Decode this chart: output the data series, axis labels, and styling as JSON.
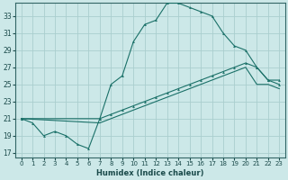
{
  "xlabel": "Humidex (Indice chaleur)",
  "bg_color": "#cce8e8",
  "grid_color": "#b8d8d8",
  "line_color": "#1a7068",
  "xlim": [
    -0.5,
    23.5
  ],
  "ylim": [
    16.5,
    34.5
  ],
  "yticks": [
    17,
    19,
    21,
    23,
    25,
    27,
    29,
    31,
    33
  ],
  "xticks": [
    0,
    1,
    2,
    3,
    4,
    5,
    6,
    7,
    8,
    9,
    10,
    11,
    12,
    13,
    14,
    15,
    16,
    17,
    18,
    19,
    20,
    21,
    22,
    23
  ],
  "main_line": [
    21,
    20.5,
    19,
    19.5,
    19,
    18.0,
    17.5,
    21.0,
    25.0,
    26.0,
    30.0,
    32.0,
    32.5,
    34.5,
    34.5,
    34.0,
    33.5,
    33.0,
    31.0,
    29.5,
    29.0,
    27.0,
    25.5,
    25.5
  ],
  "line2_x": [
    0,
    7,
    8,
    9,
    10,
    11,
    12,
    13,
    14,
    15,
    16,
    17,
    18,
    19,
    20,
    21,
    22,
    23
  ],
  "line2_y": [
    21,
    21,
    21.5,
    22,
    22.5,
    23,
    23.5,
    24,
    24.5,
    25,
    25.5,
    26,
    26.5,
    27,
    27.5,
    27,
    25.5,
    25.0
  ],
  "line3_x": [
    0,
    7,
    8,
    9,
    10,
    11,
    12,
    13,
    14,
    15,
    16,
    17,
    18,
    19,
    20,
    21,
    22,
    23
  ],
  "line3_y": [
    21,
    20.5,
    21.0,
    21.5,
    22.0,
    22.5,
    23.0,
    23.5,
    24.0,
    24.5,
    25.0,
    25.5,
    26.0,
    26.5,
    27.0,
    25.0,
    25.0,
    24.5
  ]
}
